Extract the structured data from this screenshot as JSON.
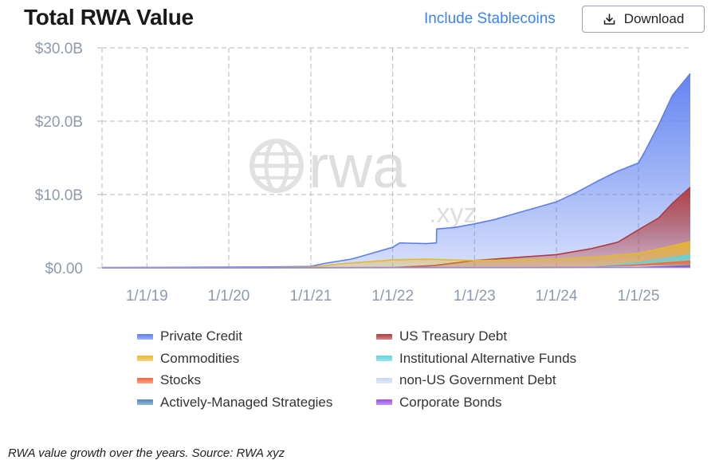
{
  "header": {
    "title": "Total RWA Value",
    "stablecoins_toggle": "Include Stablecoins",
    "download_label": "Download"
  },
  "watermark": {
    "text": "rwa",
    "suffix": ".xyz",
    "icon": "globe-icon"
  },
  "caption": "RWA value growth over the years. Source: RWA xyz",
  "chart_data": {
    "type": "area",
    "stacked": false,
    "title": "Total RWA Value",
    "ylim": [
      0,
      30
    ],
    "yticks": [
      0,
      10,
      20,
      30
    ],
    "ytick_labels": [
      "$0.00",
      "$10.0B",
      "$20.0B",
      "$30.0B"
    ],
    "xlim": [
      "2018-06-15",
      "2025-08-20"
    ],
    "xticks": [
      "2019-01-01",
      "2020-01-01",
      "2021-01-01",
      "2022-01-01",
      "2023-01-01",
      "2024-01-01",
      "2025-01-01"
    ],
    "xtick_labels": [
      "1/1/19",
      "1/1/20",
      "1/1/21",
      "1/1/22",
      "1/1/23",
      "1/1/24",
      "1/1/25"
    ],
    "grid": true,
    "legend_position": "bottom",
    "unit": "billions USD",
    "series": [
      {
        "name": "Private Credit",
        "color": "#5b7ef0",
        "x": [
          "2018-06-15",
          "2019-06-01",
          "2020-06-01",
          "2021-01-01",
          "2021-03-01",
          "2021-07-01",
          "2021-10-01",
          "2022-01-01",
          "2022-02-01",
          "2022-06-01",
          "2022-07-15",
          "2022-07-16",
          "2022-10-01",
          "2023-01-01",
          "2023-04-01",
          "2023-07-01",
          "2023-10-01",
          "2024-01-01",
          "2024-04-01",
          "2024-07-01",
          "2024-10-01",
          "2025-01-01",
          "2025-02-01",
          "2025-04-01",
          "2025-06-01",
          "2025-08-20"
        ],
        "values": [
          0.05,
          0.08,
          0.12,
          0.2,
          0.6,
          1.2,
          2.0,
          2.8,
          3.4,
          3.3,
          3.4,
          5.3,
          5.5,
          6.0,
          6.6,
          7.4,
          8.2,
          9.0,
          10.3,
          11.8,
          13.2,
          14.3,
          16.0,
          19.5,
          23.5,
          26.5
        ]
      },
      {
        "name": "US Treasury Debt",
        "color": "#b23a3a",
        "x": [
          "2018-06-15",
          "2021-01-01",
          "2022-01-01",
          "2022-07-01",
          "2023-01-01",
          "2023-07-01",
          "2024-01-01",
          "2024-06-01",
          "2024-10-01",
          "2025-01-01",
          "2025-04-01",
          "2025-06-01",
          "2025-08-20"
        ],
        "values": [
          0,
          0.02,
          0.05,
          0.3,
          1.0,
          1.4,
          1.8,
          2.6,
          3.5,
          5.2,
          6.8,
          8.8,
          11.0
        ]
      },
      {
        "name": "Commodities",
        "color": "#e8b730",
        "x": [
          "2018-06-15",
          "2020-06-01",
          "2021-01-01",
          "2021-06-01",
          "2022-01-01",
          "2022-06-01",
          "2023-01-01",
          "2023-07-01",
          "2024-01-01",
          "2024-07-01",
          "2025-01-01",
          "2025-06-01",
          "2025-08-20"
        ],
        "values": [
          0,
          0.02,
          0.1,
          0.6,
          1.1,
          1.2,
          1.0,
          1.1,
          1.2,
          1.5,
          2.0,
          3.0,
          3.6
        ]
      },
      {
        "name": "Institutional Alternative Funds",
        "color": "#5fd3e0",
        "x": [
          "2018-06-15",
          "2024-06-01",
          "2025-01-01",
          "2025-08-20"
        ],
        "values": [
          0,
          0.05,
          0.7,
          1.8
        ]
      },
      {
        "name": "Stocks",
        "color": "#f2663a",
        "x": [
          "2018-06-15",
          "2024-06-01",
          "2025-01-01",
          "2025-08-20"
        ],
        "values": [
          0,
          0.05,
          0.4,
          0.9
        ]
      },
      {
        "name": "non-US Government Debt",
        "color": "#c9d9f2",
        "x": [
          "2018-06-15",
          "2024-06-01",
          "2025-08-20"
        ],
        "values": [
          0,
          0.05,
          0.3
        ]
      },
      {
        "name": "Actively-Managed Strategies",
        "color": "#4f88b8",
        "x": [
          "2018-06-15",
          "2025-01-01",
          "2025-08-20"
        ],
        "values": [
          0,
          0.05,
          0.3
        ]
      },
      {
        "name": "Corporate Bonds",
        "color": "#9b4ee8",
        "x": [
          "2018-06-15",
          "2025-01-01",
          "2025-08-20"
        ],
        "values": [
          0,
          0.03,
          0.15
        ]
      }
    ]
  }
}
